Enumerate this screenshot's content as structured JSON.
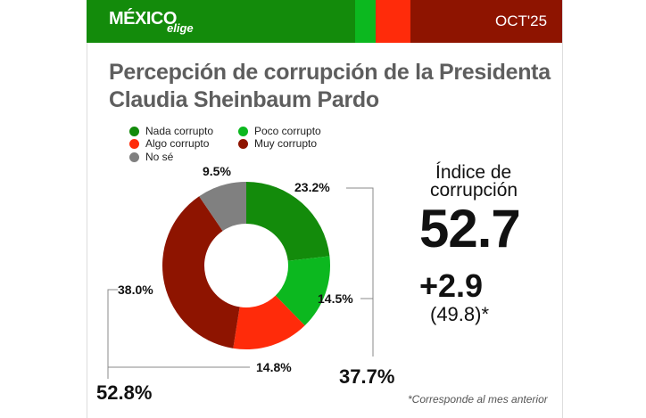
{
  "header": {
    "logo": "MÉXICO",
    "logo_sub": "elige",
    "date": "OCT'25",
    "stripe_colors": [
      "#138b0b",
      "#0cb81f",
      "#ff2b0a",
      "#8e1400"
    ]
  },
  "chart_data": {
    "type": "pie",
    "title": "Percepción de corrupción de la Presidenta Claudia Sheinbaum Pardo",
    "categories": [
      "Nada corrupto",
      "Poco corrupto",
      "Algo corrupto",
      "Muy corrupto",
      "No sé"
    ],
    "values": [
      23.2,
      14.5,
      14.8,
      38.0,
      9.5
    ],
    "labels": [
      "23.2%",
      "14.5%",
      "14.8%",
      "38.0%",
      "9.5%"
    ],
    "colors": [
      "#138b0b",
      "#0cb81f",
      "#ff2b0a",
      "#8e1400",
      "#808080"
    ],
    "donut": true,
    "legend_position": "top-left",
    "group_totals": [
      {
        "members": [
          "Nada corrupto",
          "Poco corrupto"
        ],
        "label": "37.7%"
      },
      {
        "members": [
          "Algo corrupto",
          "Muy corrupto"
        ],
        "label": "52.8%"
      }
    ]
  },
  "index": {
    "label_line1": "Índice de",
    "label_line2": "corrupción",
    "value": "52.7",
    "change": "+2.9",
    "previous": "(49.8)*"
  },
  "footnote": "*Corresponde al mes anterior"
}
